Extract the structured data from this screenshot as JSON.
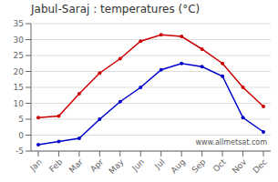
{
  "chart_data": {
    "type": "line",
    "title": "Jabul-Saraj : temperatures (°C)",
    "categories": [
      "Jan",
      "Feb",
      "Mar",
      "Apr",
      "May",
      "Jun",
      "Jul",
      "Aug",
      "Sep",
      "Oct",
      "Nov",
      "Dec"
    ],
    "series": [
      {
        "color": "#cc0000",
        "marker": "circle",
        "values": [
          5.5,
          6.0,
          13.0,
          19.5,
          24.0,
          29.5,
          31.5,
          31.0,
          27.0,
          22.5,
          15.0,
          9.0
        ]
      },
      {
        "color": "#0000cc",
        "marker": "circle",
        "values": [
          -3.0,
          -2.0,
          -1.0,
          5.0,
          10.5,
          15.0,
          20.5,
          22.5,
          21.5,
          18.5,
          5.5,
          1.0
        ]
      }
    ],
    "ylim": [
      -5,
      35
    ],
    "yticks": [
      -5,
      0,
      5,
      10,
      15,
      20,
      25,
      30,
      35
    ],
    "grid": true,
    "annotations": [
      "www.allmetsat.com"
    ]
  }
}
